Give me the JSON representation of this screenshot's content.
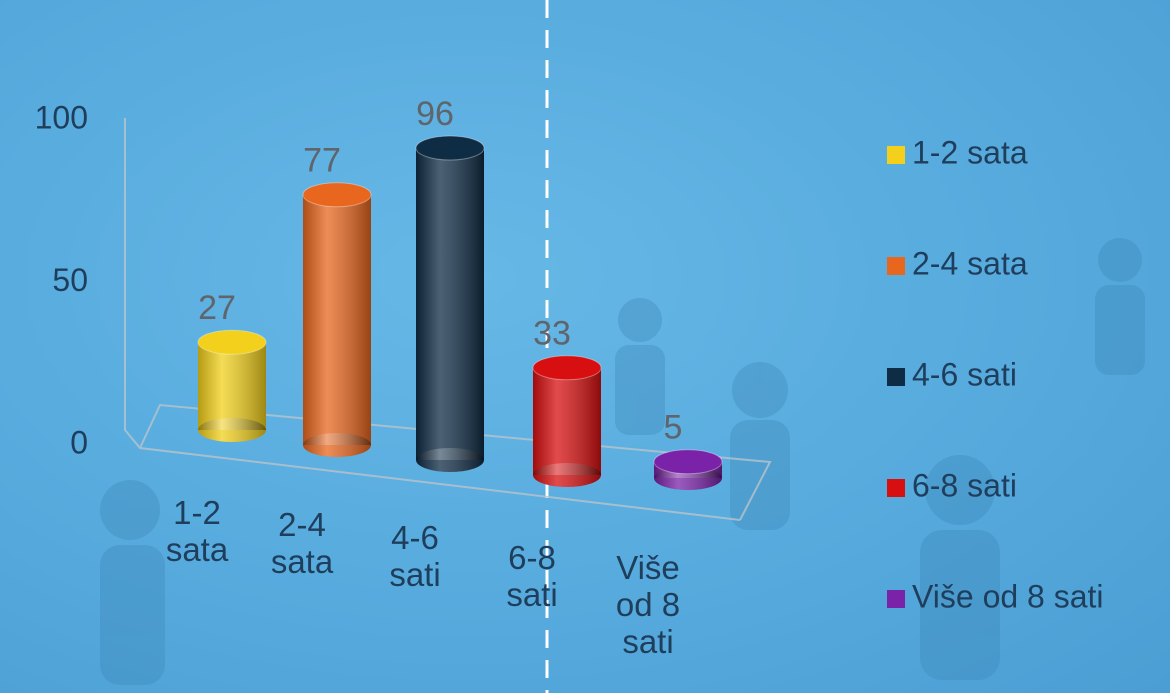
{
  "chart_data": {
    "type": "bar3d",
    "categories": [
      "1-2 sata",
      "2-4 sata",
      "4-6 sati",
      "6-8 sati",
      "Više od 8 sati"
    ],
    "values": [
      27,
      77,
      96,
      33,
      5
    ],
    "colors": [
      "#f2d01c",
      "#e8661e",
      "#0f2c45",
      "#d80f10",
      "#7a22a8"
    ],
    "ylim": [
      0,
      100
    ],
    "yticks": [
      0,
      50,
      100
    ],
    "legend": "right"
  }
}
